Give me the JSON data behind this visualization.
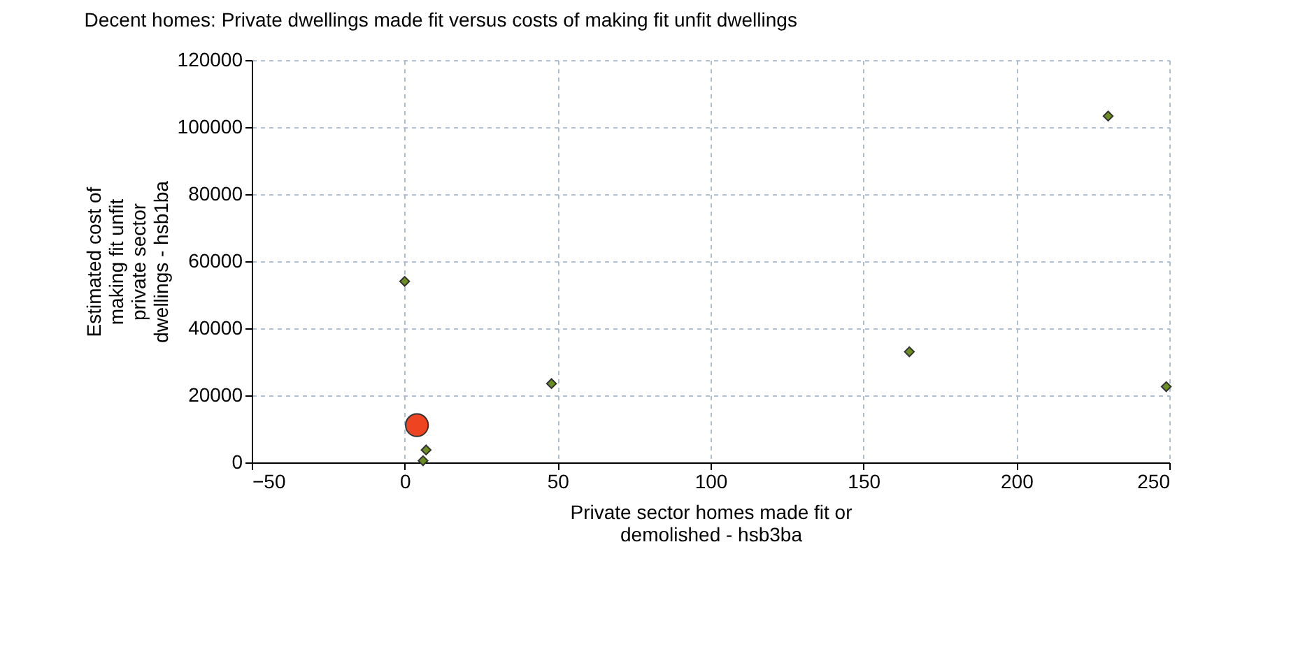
{
  "chart_data": {
    "type": "scatter",
    "title": "Decent homes: Private dwellings made fit versus costs of making fit unfit dwellings",
    "xlabel": "Private sector homes made fit or demolished - hsb3ba",
    "ylabel": "Estimated cost of making fit unfit private sector dwellings - hsb1ba",
    "xlim": [
      -50,
      250
    ],
    "xticks": [
      -50,
      0,
      50,
      100,
      150,
      200,
      250
    ],
    "ylim": [
      0,
      120000
    ],
    "yticks": [
      0,
      20000,
      40000,
      60000,
      80000,
      100000,
      120000
    ],
    "grid": true,
    "series": [
      {
        "color": "#6b8e23",
        "marker": "diamond",
        "x": [
          0,
          48,
          165,
          230,
          249,
          7,
          6
        ],
        "values": [
          54000,
          23500,
          33000,
          103300,
          22600,
          3700,
          500
        ]
      },
      {
        "color": "#ee4422",
        "marker": "circle",
        "x": [
          4
        ],
        "values": [
          11100
        ]
      }
    ]
  }
}
